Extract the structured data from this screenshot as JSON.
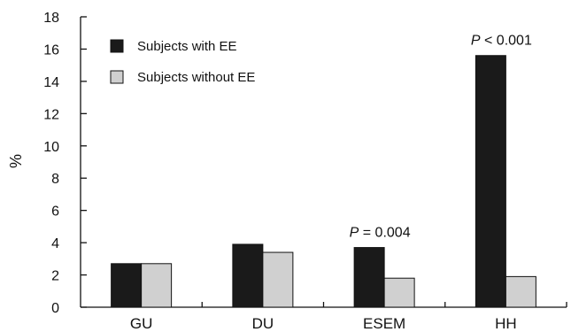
{
  "chart_data": {
    "type": "bar",
    "categories": [
      "GU",
      "DU",
      "ESEM",
      "HH"
    ],
    "series": [
      {
        "name": "Subjects with EE",
        "values": [
          2.7,
          3.9,
          3.7,
          15.6
        ],
        "color": "#1a1a1a"
      },
      {
        "name": "Subjects without EE",
        "values": [
          2.7,
          3.4,
          1.8,
          1.9
        ],
        "color": "#d0d0d0"
      }
    ],
    "ylabel": "%",
    "ylim": [
      0,
      18
    ],
    "yticks": [
      0,
      2,
      4,
      6,
      8,
      10,
      12,
      14,
      16,
      18
    ],
    "grid": false,
    "legend_position": "top-left",
    "annotations": [
      {
        "category": "ESEM",
        "italic": "P",
        "text": " = 0.004"
      },
      {
        "category": "HH",
        "italic": "P",
        "text": " < 0.001"
      }
    ]
  }
}
